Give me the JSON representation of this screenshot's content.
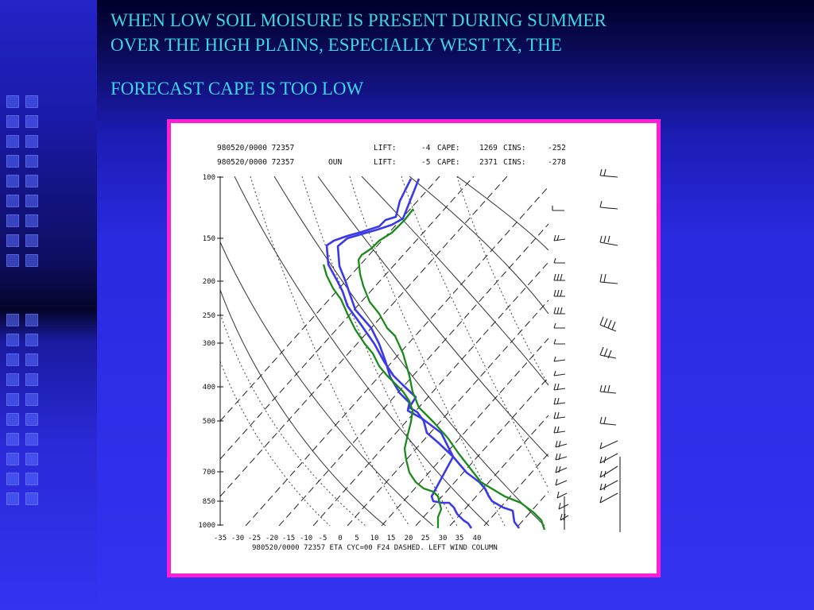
{
  "slide": {
    "title_line1": "WHEN LOW SOIL MOISURE IS PRESENT DURING SUMMER",
    "title_line2": "OVER THE HIGH PLAINS, ESPECIALLY WEST TX, THE",
    "title_line3": "FORECAST CAPE IS TOO LOW"
  },
  "sounding": {
    "header1": {
      "station": "980520/0000 72357",
      "lift_label": "LIFT:",
      "lift_value": "-4",
      "cape_label": "CAPE:",
      "cape_value": "1269",
      "cins_label": "CINS:",
      "cins_value": "-252"
    },
    "header2": {
      "station": "980520/0000 72357",
      "site": "OUN",
      "lift_label": "LIFT:",
      "lift_value": "-5",
      "cape_label": "CAPE:",
      "cape_value": "2371",
      "cins_label": "CINS:",
      "cins_value": "-278"
    },
    "pressure_labels": [
      "100",
      "150",
      "200",
      "250",
      "300",
      "400",
      "500",
      "700",
      "850",
      "1000"
    ],
    "temperature_labels": [
      "-35",
      "-30",
      "-25",
      "-20",
      "-15",
      "-10",
      "-5",
      "0",
      "5",
      "10",
      "15",
      "20",
      "25",
      "30",
      "35",
      "40"
    ],
    "footer": "980520/0000 72357  ETA CYC=00 F24 DASHED. LEFT WIND COLUMN",
    "colors": {
      "forecast": "#3a3ae8",
      "observed": "#1a8a1a",
      "frame": "#ff1fd2",
      "title": "#3cd6e6"
    }
  }
}
